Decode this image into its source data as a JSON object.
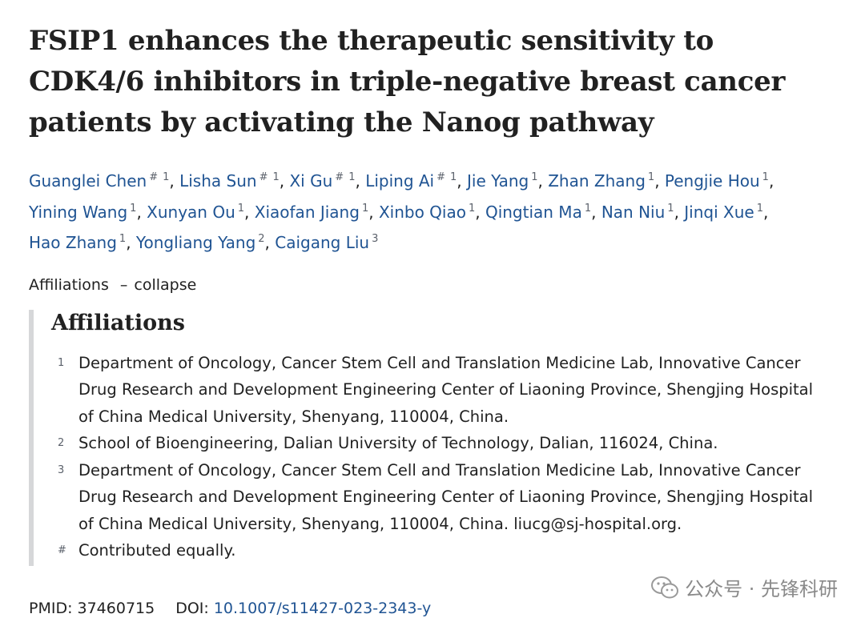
{
  "article": {
    "title": "FSIP1 enhances the therapeutic sensitivity to CDK4/6 inhibitors in triple-negative breast cancer patients by activating the Nanog pathway"
  },
  "authors": [
    {
      "name": "Guanglei Chen",
      "mark": "#",
      "aff": "1",
      "sep": ","
    },
    {
      "name": "Lisha Sun",
      "mark": "#",
      "aff": "1",
      "sep": ","
    },
    {
      "name": "Xi Gu",
      "mark": "#",
      "aff": "1",
      "sep": ","
    },
    {
      "name": "Liping Ai",
      "mark": "#",
      "aff": "1",
      "sep": ","
    },
    {
      "name": "Jie Yang",
      "mark": "",
      "aff": "1",
      "sep": ","
    },
    {
      "name": "Zhan Zhang",
      "mark": "",
      "aff": "1",
      "sep": ","
    },
    {
      "name": "Pengjie Hou",
      "mark": "",
      "aff": "1",
      "sep": ","
    },
    {
      "name": "Yining Wang",
      "mark": "",
      "aff": "1",
      "sep": ","
    },
    {
      "name": "Xunyan Ou",
      "mark": "",
      "aff": "1",
      "sep": ","
    },
    {
      "name": "Xiaofan Jiang",
      "mark": "",
      "aff": "1",
      "sep": ","
    },
    {
      "name": "Xinbo Qiao",
      "mark": "",
      "aff": "1",
      "sep": ","
    },
    {
      "name": "Qingtian Ma",
      "mark": "",
      "aff": "1",
      "sep": ","
    },
    {
      "name": "Nan Niu",
      "mark": "",
      "aff": "1",
      "sep": ","
    },
    {
      "name": "Jinqi Xue",
      "mark": "",
      "aff": "1",
      "sep": ","
    },
    {
      "name": "Hao Zhang",
      "mark": "",
      "aff": "1",
      "sep": ","
    },
    {
      "name": "Yongliang Yang",
      "mark": "",
      "aff": "2",
      "sep": ","
    },
    {
      "name": "Caigang Liu",
      "mark": "",
      "aff": "3",
      "sep": ""
    }
  ],
  "affiliations_toggle": {
    "label": "Affiliations",
    "dash": "–",
    "action": "collapse"
  },
  "affiliations": {
    "heading": "Affiliations",
    "items": [
      {
        "num": "1",
        "text": "Department of Oncology, Cancer Stem Cell and Translation Medicine Lab, Innovative Cancer Drug Research and Development Engineering Center of Liaoning Province, Shengjing Hospital of China Medical University, Shenyang, 110004, China."
      },
      {
        "num": "2",
        "text": "School of Bioengineering, Dalian University of Technology, Dalian, 116024, China."
      },
      {
        "num": "3",
        "text": "Department of Oncology, Cancer Stem Cell and Translation Medicine Lab, Innovative Cancer Drug Research and Development Engineering Center of Liaoning Province, Shengjing Hospital of China Medical University, Shenyang, 110004, China. liucg@sj-hospital.org."
      },
      {
        "num": "#",
        "text": "Contributed equally."
      }
    ]
  },
  "identifiers": {
    "pmid_label": "PMID:",
    "pmid": "37460715",
    "doi_label": "DOI:",
    "doi": "10.1007/s11427-023-2343-y"
  },
  "watermark": {
    "text": "公众号 · 先锋科研",
    "icon": "wechat-icon"
  },
  "colors": {
    "link": "#205493",
    "text": "#212121",
    "muted": "#5b616b",
    "border": "#d6d7d9"
  }
}
